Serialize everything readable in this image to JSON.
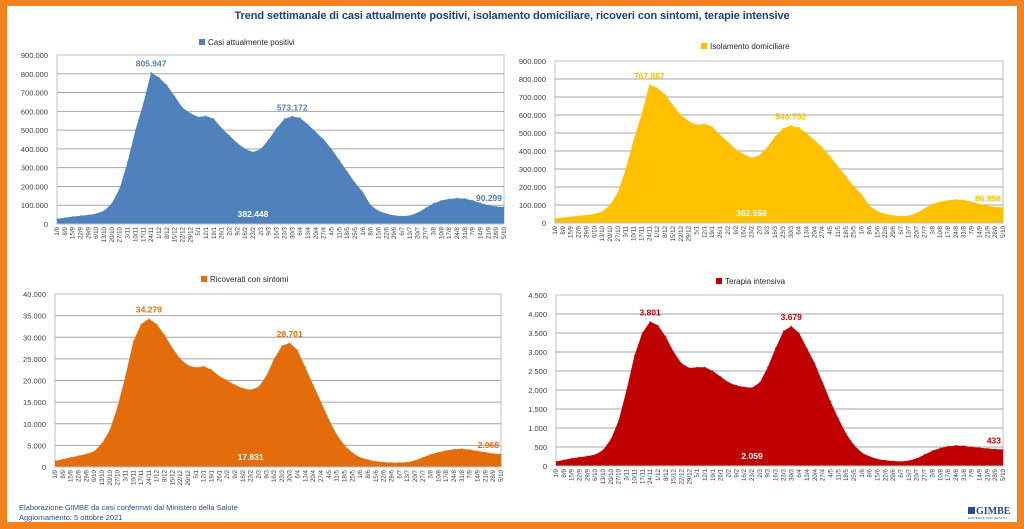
{
  "title": "Trend settimanale di casi attualmente positivi, isolamento domiciliare, ricoveri con sintomi, terapie intensive",
  "footer": {
    "line1": "Elaborazione GIMBE da casi confermati dal Ministero della Salute",
    "line2": "Aggiornamento: 5 ottobre 2021",
    "logo": "GIMBE",
    "logo_sub": "EVIDENCE FOR HEALTH"
  },
  "dates": [
    "1/9",
    "8/9",
    "15/9",
    "22/9",
    "29/9",
    "6/10",
    "13/10",
    "20/10",
    "27/10",
    "3/11",
    "10/11",
    "17/11",
    "24/11",
    "1/12",
    "8/12",
    "15/12",
    "22/12",
    "29/12",
    "5/1",
    "12/1",
    "19/1",
    "26/1",
    "2/2",
    "9/2",
    "16/2",
    "23/2",
    "2/3",
    "9/3",
    "16/3",
    "23/3",
    "30/3",
    "6/4",
    "13/4",
    "20/4",
    "27/4",
    "4/5",
    "11/5",
    "18/5",
    "25/5",
    "1/6",
    "8/6",
    "15/6",
    "22/6",
    "29/6",
    "6/7",
    "13/7",
    "20/7",
    "27/7",
    "3/8",
    "10/8",
    "17/8",
    "24/8",
    "31/8",
    "7/9",
    "14/9",
    "21/9",
    "28/9",
    "5/10"
  ],
  "chart_data": [
    {
      "type": "area",
      "title": "",
      "legend": "Casi attualmente positivi",
      "legend_position": "top",
      "color": "#4f81bd",
      "label_color": "#4f81bd",
      "xlabel": "",
      "ylabel": "",
      "ylim": [
        0,
        900000
      ],
      "yticks": [
        0,
        100000,
        200000,
        300000,
        400000,
        500000,
        600000,
        700000,
        800000,
        900000
      ],
      "ytick_labels": [
        "0",
        "100.000",
        "200.000",
        "300.000",
        "400.000",
        "500.000",
        "600.000",
        "700.000",
        "800.000",
        "900.000"
      ],
      "grid": true,
      "values": [
        27000,
        33000,
        39000,
        44000,
        48000,
        55000,
        70000,
        110000,
        190000,
        330000,
        500000,
        640000,
        805947,
        780000,
        740000,
        680000,
        620000,
        590000,
        570000,
        575000,
        560000,
        510000,
        470000,
        430000,
        400000,
        382448,
        400000,
        450000,
        510000,
        560000,
        573172,
        565000,
        530000,
        490000,
        450000,
        400000,
        340000,
        280000,
        220000,
        170000,
        100000,
        70000,
        55000,
        45000,
        42000,
        45000,
        60000,
        85000,
        110000,
        125000,
        133000,
        137000,
        135000,
        125000,
        112000,
        100000,
        93000,
        90299
      ],
      "annotations": [
        {
          "text": "805.947",
          "index": 12,
          "value": 805947,
          "position": "above"
        },
        {
          "text": "382.448",
          "index": 25,
          "value": 382448,
          "position": "inside-bottom"
        },
        {
          "text": "573.172",
          "index": 30,
          "value": 573172,
          "position": "above"
        },
        {
          "text": "90.299",
          "index": 57,
          "value": 90299,
          "position": "above"
        }
      ]
    },
    {
      "type": "area",
      "title": "",
      "legend": "Isolamento domiciliare",
      "legend_position": "top",
      "color": "#ffc000",
      "label_color": "#ffc000",
      "xlabel": "",
      "ylabel": "",
      "ylim": [
        0,
        900000
      ],
      "yticks": [
        0,
        100000,
        200000,
        300000,
        400000,
        500000,
        600000,
        700000,
        800000,
        900000
      ],
      "ytick_labels": [
        "0",
        "100.000",
        "200.000",
        "300.000",
        "400.000",
        "500.000",
        "600.000",
        "700.000",
        "800.000",
        "900.000"
      ],
      "grid": true,
      "values": [
        25000,
        30000,
        35000,
        40000,
        44000,
        50000,
        63000,
        100000,
        170000,
        300000,
        460000,
        600000,
        767867,
        750000,
        715000,
        655000,
        600000,
        565000,
        545000,
        550000,
        535000,
        490000,
        450000,
        410000,
        382000,
        362558,
        375000,
        420000,
        480000,
        525000,
        540792,
        530000,
        500000,
        460000,
        420000,
        370000,
        315000,
        260000,
        205000,
        160000,
        95000,
        65000,
        50000,
        42000,
        38000,
        40000,
        55000,
        80000,
        105000,
        118000,
        126000,
        130000,
        128000,
        118000,
        106000,
        95000,
        89000,
        86898
      ],
      "annotations": [
        {
          "text": "767.867",
          "index": 12,
          "value": 767867,
          "position": "above"
        },
        {
          "text": "362.558",
          "index": 25,
          "value": 362558,
          "position": "inside-bottom"
        },
        {
          "text": "540.792",
          "index": 30,
          "value": 540792,
          "position": "above"
        },
        {
          "text": "86.898",
          "index": 57,
          "value": 86898,
          "position": "above"
        }
      ]
    },
    {
      "type": "area",
      "title": "",
      "legend": "Ricoverati con sintomi",
      "legend_position": "top",
      "color": "#e46c0a",
      "label_color": "#e46c0a",
      "xlabel": "",
      "ylabel": "",
      "ylim": [
        0,
        40000
      ],
      "yticks": [
        0,
        5000,
        10000,
        15000,
        20000,
        25000,
        30000,
        35000,
        40000
      ],
      "ytick_labels": [
        "0",
        "5.000",
        "10.000",
        "15.000",
        "20.000",
        "25.000",
        "30.000",
        "35.000",
        "40.000"
      ],
      "grid": true,
      "values": [
        1400,
        1800,
        2200,
        2600,
        3000,
        3600,
        5500,
        8500,
        14000,
        21000,
        29000,
        33000,
        34279,
        33000,
        30500,
        27500,
        25000,
        23500,
        23000,
        23300,
        22500,
        21000,
        20000,
        19000,
        18200,
        17831,
        18500,
        21000,
        25000,
        28000,
        28701,
        27000,
        23000,
        19000,
        15000,
        11000,
        7500,
        5000,
        3300,
        2200,
        1700,
        1300,
        1100,
        1000,
        1000,
        1100,
        1500,
        2200,
        2900,
        3400,
        3800,
        4100,
        4200,
        4000,
        3700,
        3400,
        3100,
        2968
      ],
      "annotations": [
        {
          "text": "34.279",
          "index": 12,
          "value": 34279,
          "position": "above"
        },
        {
          "text": "17.831",
          "index": 25,
          "value": 17831,
          "position": "inside-bottom"
        },
        {
          "text": "28.701",
          "index": 30,
          "value": 28701,
          "position": "above"
        },
        {
          "text": "2.968",
          "index": 57,
          "value": 2968,
          "position": "above"
        }
      ]
    },
    {
      "type": "area",
      "title": "",
      "legend": "Terapia intensiva",
      "legend_position": "top",
      "color": "#c00000",
      "label_color": "#c00000",
      "xlabel": "",
      "ylabel": "",
      "ylim": [
        0,
        4500
      ],
      "yticks": [
        0,
        500,
        1000,
        1500,
        2000,
        2500,
        3000,
        3500,
        4000,
        4500
      ],
      "ytick_labels": [
        "0",
        "500",
        "1.000",
        "1.500",
        "2.000",
        "2.500",
        "3.000",
        "3.500",
        "4.000",
        "4.500"
      ],
      "grid": true,
      "values": [
        120,
        160,
        200,
        230,
        260,
        300,
        420,
        700,
        1200,
        2000,
        2900,
        3500,
        3801,
        3700,
        3400,
        3000,
        2700,
        2580,
        2600,
        2600,
        2500,
        2350,
        2200,
        2120,
        2080,
        2059,
        2200,
        2600,
        3100,
        3550,
        3679,
        3500,
        3100,
        2700,
        2200,
        1700,
        1250,
        850,
        550,
        350,
        250,
        180,
        150,
        130,
        120,
        140,
        200,
        300,
        400,
        470,
        520,
        540,
        530,
        500,
        480,
        460,
        445,
        433
      ],
      "annotations": [
        {
          "text": "3.801",
          "index": 12,
          "value": 3801,
          "position": "above"
        },
        {
          "text": "2.059",
          "index": 25,
          "value": 2059,
          "position": "inside-bottom"
        },
        {
          "text": "3.679",
          "index": 30,
          "value": 3679,
          "position": "above"
        },
        {
          "text": "433",
          "index": 57,
          "value": 433,
          "position": "above"
        }
      ]
    }
  ]
}
